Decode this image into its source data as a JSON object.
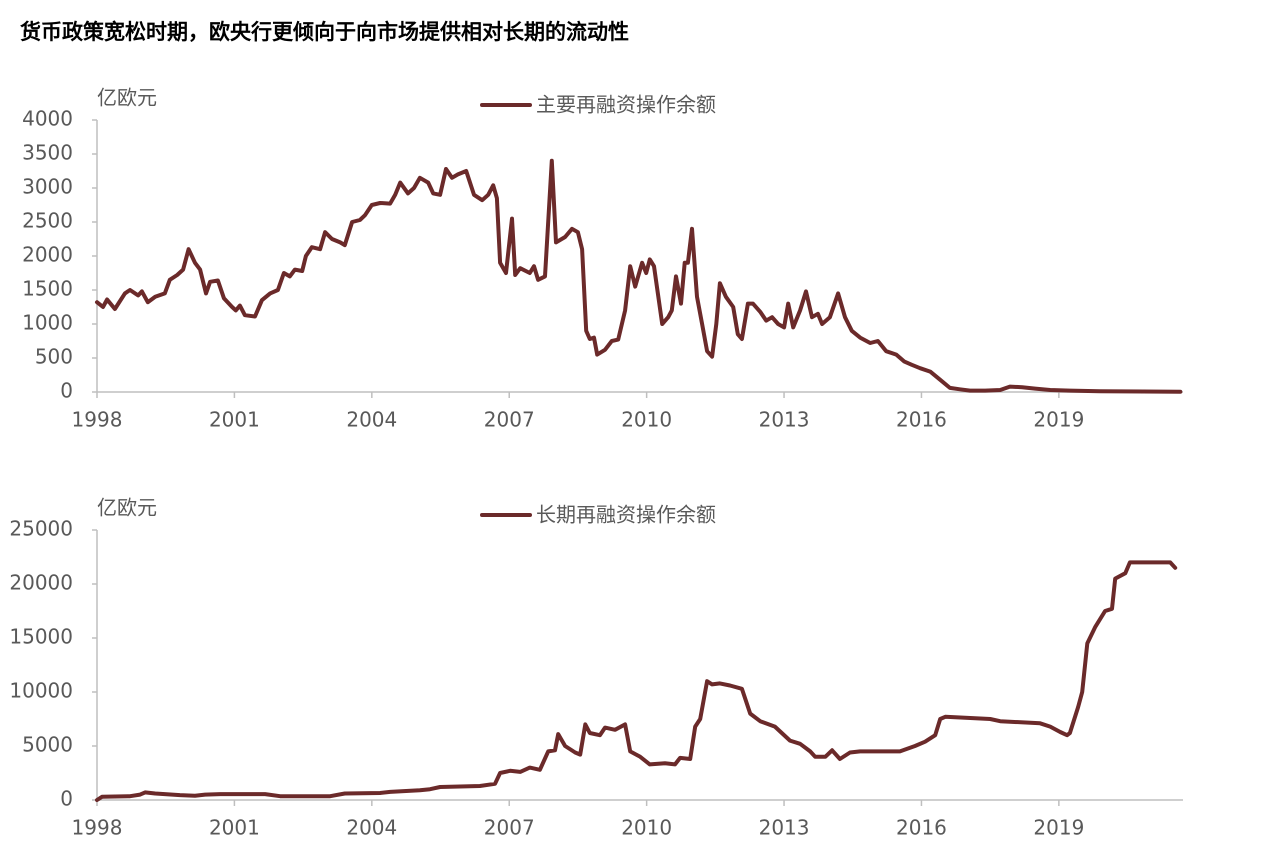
{
  "title": "货币政策宽松时期，欧央行更倾向于向市场提供相对长期的流动性",
  "chart_data": [
    {
      "type": "line",
      "y_label": "亿欧元",
      "x": [
        1998.0,
        1998.13,
        1998.22,
        1998.39,
        1998.61,
        1998.72,
        1998.9,
        1998.98,
        1999.11,
        1999.27,
        1999.48,
        1999.59,
        1999.75,
        1999.88,
        2000.0,
        2000.14,
        2000.25,
        2000.38,
        2000.47,
        2000.64,
        2000.77,
        2000.95,
        2001.03,
        2001.12,
        2001.23,
        2001.45,
        2001.6,
        2001.78,
        2001.95,
        2002.08,
        2002.21,
        2002.32,
        2002.48,
        2002.56,
        2002.69,
        2002.87,
        2002.98,
        2003.13,
        2003.31,
        2003.41,
        2003.57,
        2003.74,
        2003.85,
        2004.0,
        2004.18,
        2004.4,
        2004.51,
        2004.62,
        2004.79,
        2004.92,
        2005.05,
        2005.23,
        2005.34,
        2005.49,
        2005.62,
        2005.75,
        2005.88,
        2006.06,
        2006.23,
        2006.41,
        2006.54,
        2006.65,
        2006.73,
        2006.8,
        2006.93,
        2007.06,
        2007.13,
        2007.24,
        2007.45,
        2007.54,
        2007.63,
        2007.78,
        2007.93,
        2008.02,
        2008.22,
        2008.37,
        2008.5,
        2008.59,
        2008.68,
        2008.76,
        2008.85,
        2008.92,
        2009.09,
        2009.24,
        2009.38,
        2009.53,
        2009.64,
        2009.75,
        2009.9,
        2009.99,
        2010.07,
        2010.16,
        2010.34,
        2010.47,
        2010.55,
        2010.64,
        2010.75,
        2010.83,
        2010.9,
        2010.99,
        2011.1,
        2011.21,
        2011.32,
        2011.43,
        2011.52,
        2011.6,
        2011.73,
        2011.89,
        2011.99,
        2012.08,
        2012.21,
        2012.32,
        2012.48,
        2012.61,
        2012.74,
        2012.87,
        2013.0,
        2013.09,
        2013.2,
        2013.35,
        2013.48,
        2013.61,
        2013.74,
        2013.83,
        2014.0,
        2014.18,
        2014.33,
        2014.48,
        2014.66,
        2014.88,
        2015.05,
        2015.23,
        2015.45,
        2015.62,
        2015.79,
        2015.97,
        2016.19,
        2016.41,
        2016.62,
        2016.84,
        2017.06,
        2017.39,
        2017.72,
        2017.93,
        2018.2,
        2018.48,
        2018.81,
        2019.24,
        2019.9,
        2021.65
      ],
      "series": [
        {
          "name": "主要再融资操作余额",
          "color": "#6b2a2a",
          "values": [
            1320,
            1250,
            1360,
            1220,
            1450,
            1500,
            1420,
            1480,
            1320,
            1400,
            1450,
            1650,
            1720,
            1800,
            2100,
            1900,
            1800,
            1450,
            1620,
            1640,
            1380,
            1250,
            1200,
            1270,
            1130,
            1110,
            1350,
            1450,
            1500,
            1750,
            1700,
            1800,
            1780,
            2000,
            2130,
            2100,
            2350,
            2250,
            2200,
            2160,
            2500,
            2530,
            2600,
            2750,
            2780,
            2770,
            2900,
            3080,
            2920,
            3000,
            3150,
            3080,
            2920,
            2900,
            3280,
            3150,
            3200,
            3250,
            2900,
            2820,
            2900,
            3040,
            2850,
            1900,
            1750,
            2550,
            1720,
            1820,
            1750,
            1850,
            1650,
            1700,
            3400,
            2200,
            2280,
            2400,
            2350,
            2100,
            900,
            780,
            800,
            550,
            620,
            750,
            770,
            1200,
            1850,
            1550,
            1900,
            1750,
            1950,
            1850,
            1000,
            1100,
            1200,
            1700,
            1300,
            1900,
            1900,
            2400,
            1400,
            1000,
            600,
            520,
            1000,
            1600,
            1400,
            1250,
            850,
            780,
            1300,
            1300,
            1180,
            1050,
            1100,
            1000,
            950,
            1300,
            950,
            1200,
            1480,
            1100,
            1150,
            1000,
            1100,
            1450,
            1100,
            900,
            800,
            720,
            750,
            600,
            550,
            450,
            400,
            350,
            300,
            180,
            60,
            40,
            20,
            20,
            30,
            80,
            70,
            50,
            30,
            20,
            10,
            5
          ]
        }
      ],
      "xlim": [
        1998,
        2021.71
      ],
      "xticks": [
        1998,
        2001,
        2004,
        2007,
        2010,
        2013,
        2016,
        2019
      ],
      "ylim": [
        0,
        4000
      ],
      "yticks": [
        0,
        500,
        1000,
        1500,
        2000,
        2500,
        3000,
        3500,
        4000
      ]
    },
    {
      "type": "line",
      "y_label": "亿欧元",
      "x": [
        1998.0,
        1998.11,
        1998.72,
        1998.94,
        1999.05,
        1999.27,
        1999.48,
        1999.81,
        2000.14,
        2000.36,
        2000.69,
        2001.67,
        2002.0,
        2002.65,
        2003.09,
        2003.41,
        2004.18,
        2004.4,
        2005.05,
        2005.27,
        2005.49,
        2006.36,
        2006.69,
        2006.8,
        2007.02,
        2007.24,
        2007.45,
        2007.67,
        2007.85,
        2008.0,
        2008.07,
        2008.22,
        2008.44,
        2008.55,
        2008.66,
        2008.76,
        2008.98,
        2009.09,
        2009.31,
        2009.53,
        2009.64,
        2009.86,
        2010.07,
        2010.4,
        2010.62,
        2010.73,
        2010.95,
        2011.06,
        2011.17,
        2011.32,
        2011.43,
        2011.6,
        2011.82,
        2012.08,
        2012.26,
        2012.48,
        2012.8,
        2013.13,
        2013.35,
        2013.57,
        2013.68,
        2013.9,
        2014.05,
        2014.22,
        2014.44,
        2014.66,
        2015.1,
        2015.53,
        2015.86,
        2016.08,
        2016.3,
        2016.41,
        2016.52,
        2017.5,
        2017.72,
        2018.59,
        2018.81,
        2019.03,
        2019.18,
        2019.24,
        2019.42,
        2019.51,
        2019.62,
        2019.79,
        2020.01,
        2020.16,
        2020.23,
        2020.45,
        2020.55,
        2020.99,
        2021.43,
        2021.54
      ],
      "series": [
        {
          "name": "长期再融资操作余额",
          "color": "#6b2a2a",
          "values": [
            0,
            300,
            350,
            500,
            700,
            600,
            550,
            450,
            400,
            500,
            550,
            550,
            350,
            350,
            350,
            600,
            650,
            750,
            900,
            1000,
            1200,
            1300,
            1500,
            2500,
            2700,
            2600,
            3000,
            2800,
            4500,
            4600,
            6100,
            5000,
            4400,
            4200,
            7000,
            6200,
            6000,
            6700,
            6500,
            7000,
            4500,
            4000,
            3300,
            3400,
            3300,
            3900,
            3800,
            6800,
            7500,
            11000,
            10700,
            10800,
            10600,
            10300,
            8000,
            7300,
            6800,
            5500,
            5200,
            4500,
            4000,
            4000,
            4600,
            3800,
            4400,
            4500,
            4500,
            4500,
            5000,
            5400,
            6000,
            7500,
            7700,
            7500,
            7300,
            7100,
            6800,
            6300,
            6000,
            6200,
            8600,
            10000,
            14500,
            16000,
            17500,
            17700,
            20500,
            21000,
            22000,
            22000,
            22000,
            21500
          ]
        }
      ],
      "xlim": [
        1998,
        2021.71
      ],
      "xticks": [
        1998,
        2001,
        2004,
        2007,
        2010,
        2013,
        2016,
        2019
      ],
      "ylim": [
        0,
        25000
      ],
      "yticks": [
        0,
        5000,
        10000,
        15000,
        20000,
        25000
      ]
    }
  ]
}
